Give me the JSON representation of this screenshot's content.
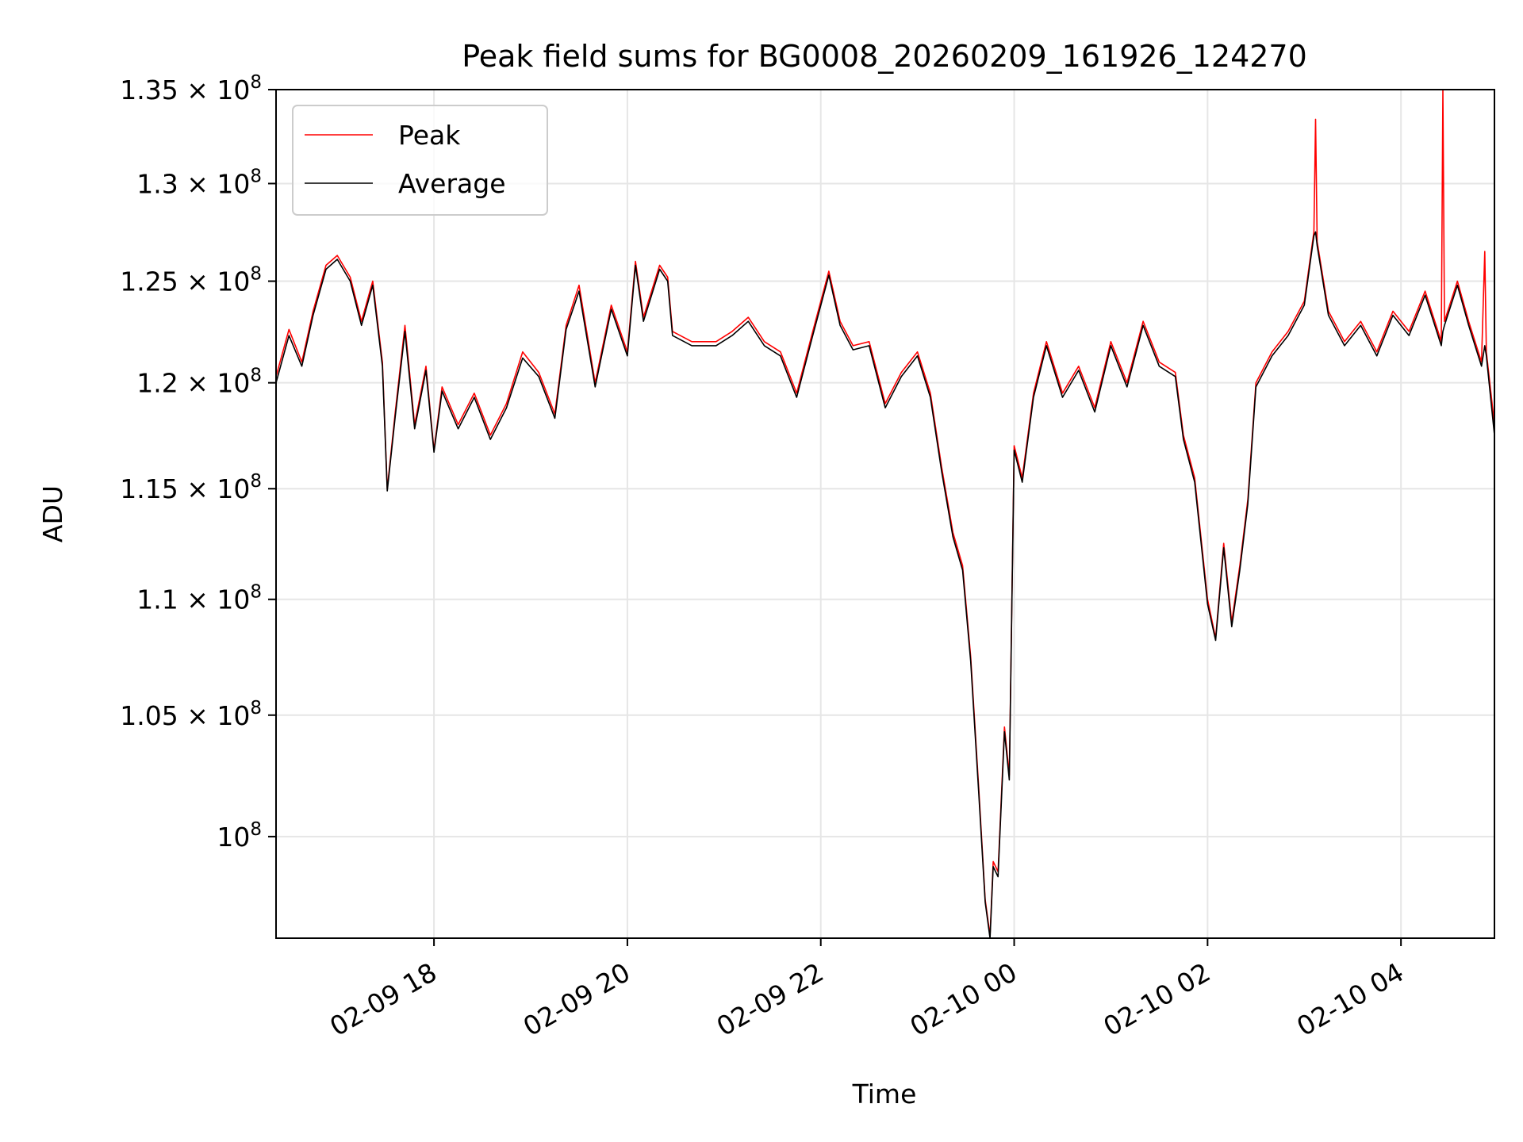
{
  "chart_data": {
    "type": "line",
    "title": "Peak field sums for BG0008_20260209_161926_124270",
    "xlabel": "Time",
    "ylabel": "ADU",
    "y_scale": "log",
    "grid": true,
    "legend_placement": "top-left",
    "xlim": [
      "2026-02-09T16:22",
      "2026-02-10T04:58"
    ],
    "ylim": [
      96000000,
      135000000
    ],
    "x_ticks": [
      {
        "t": "2026-02-09T18:00",
        "label": "02-09 18"
      },
      {
        "t": "2026-02-09T20:00",
        "label": "02-09 20"
      },
      {
        "t": "2026-02-09T22:00",
        "label": "02-09 22"
      },
      {
        "t": "2026-02-10T00:00",
        "label": "02-10 00"
      },
      {
        "t": "2026-02-10T02:00",
        "label": "02-10 02"
      },
      {
        "t": "2026-02-10T04:00",
        "label": "02-10 04"
      }
    ],
    "y_ticks": [
      {
        "v": 100000000,
        "mant": "",
        "exp": "8"
      },
      {
        "v": 105000000,
        "mant": "1.05",
        "exp": "8"
      },
      {
        "v": 110000000,
        "mant": "1.1",
        "exp": "8"
      },
      {
        "v": 115000000,
        "mant": "1.15",
        "exp": "8"
      },
      {
        "v": 120000000,
        "mant": "1.2",
        "exp": "8"
      },
      {
        "v": 125000000,
        "mant": "1.25",
        "exp": "8"
      },
      {
        "v": 130000000,
        "mant": "1.3",
        "exp": "8"
      },
      {
        "v": 135000000,
        "mant": "1.35",
        "exp": "8"
      }
    ],
    "series": [
      {
        "name": "Peak",
        "color": "#ff0000",
        "points": [
          [
            "2026-02-09T16:22",
            120300000.0
          ],
          [
            "2026-02-09T16:30",
            122600000.0
          ],
          [
            "2026-02-09T16:38",
            121000000.0
          ],
          [
            "2026-02-09T16:45",
            123500000.0
          ],
          [
            "2026-02-09T16:53",
            125800000.0
          ],
          [
            "2026-02-09T17:00",
            126300000.0
          ],
          [
            "2026-02-09T17:08",
            125200000.0
          ],
          [
            "2026-02-09T17:15",
            123000000.0
          ],
          [
            "2026-02-09T17:22",
            125000000.0
          ],
          [
            "2026-02-09T17:28",
            121000000.0
          ],
          [
            "2026-02-09T17:31",
            115000000.0
          ],
          [
            "2026-02-09T17:36",
            118600000.0
          ],
          [
            "2026-02-09T17:42",
            122800000.0
          ],
          [
            "2026-02-09T17:48",
            118000000.0
          ],
          [
            "2026-02-09T17:55",
            120800000.0
          ],
          [
            "2026-02-09T18:00",
            116800000.0
          ],
          [
            "2026-02-09T18:05",
            119800000.0
          ],
          [
            "2026-02-09T18:15",
            118000000.0
          ],
          [
            "2026-02-09T18:25",
            119500000.0
          ],
          [
            "2026-02-09T18:35",
            117500000.0
          ],
          [
            "2026-02-09T18:45",
            119000000.0
          ],
          [
            "2026-02-09T18:55",
            121500000.0
          ],
          [
            "2026-02-09T19:05",
            120500000.0
          ],
          [
            "2026-02-09T19:15",
            118500000.0
          ],
          [
            "2026-02-09T19:22",
            122800000.0
          ],
          [
            "2026-02-09T19:30",
            124800000.0
          ],
          [
            "2026-02-09T19:40",
            120000000.0
          ],
          [
            "2026-02-09T19:50",
            123800000.0
          ],
          [
            "2026-02-09T20:00",
            121500000.0
          ],
          [
            "2026-02-09T20:05",
            126000000.0
          ],
          [
            "2026-02-09T20:10",
            123200000.0
          ],
          [
            "2026-02-09T20:20",
            125800000.0
          ],
          [
            "2026-02-09T20:25",
            125200000.0
          ],
          [
            "2026-02-09T20:28",
            122500000.0
          ],
          [
            "2026-02-09T20:40",
            122000000.0
          ],
          [
            "2026-02-09T20:55",
            122000000.0
          ],
          [
            "2026-02-09T21:05",
            122500000.0
          ],
          [
            "2026-02-09T21:15",
            123200000.0
          ],
          [
            "2026-02-09T21:25",
            122000000.0
          ],
          [
            "2026-02-09T21:35",
            121500000.0
          ],
          [
            "2026-02-09T21:45",
            119500000.0
          ],
          [
            "2026-02-09T21:55",
            122500000.0
          ],
          [
            "2026-02-09T22:05",
            125500000.0
          ],
          [
            "2026-02-09T22:12",
            123000000.0
          ],
          [
            "2026-02-09T22:20",
            121800000.0
          ],
          [
            "2026-02-09T22:30",
            122000000.0
          ],
          [
            "2026-02-09T22:40",
            119000000.0
          ],
          [
            "2026-02-09T22:50",
            120500000.0
          ],
          [
            "2026-02-09T23:00",
            121500000.0
          ],
          [
            "2026-02-09T23:08",
            119500000.0
          ],
          [
            "2026-02-09T23:15",
            116000000.0
          ],
          [
            "2026-02-09T23:22",
            113000000.0
          ],
          [
            "2026-02-09T23:28",
            111500000.0
          ],
          [
            "2026-02-09T23:33",
            107500000.0
          ],
          [
            "2026-02-09T23:38",
            102000000.0
          ],
          [
            "2026-02-09T23:42",
            97500000.0
          ],
          [
            "2026-02-09T23:45",
            96100000.0
          ],
          [
            "2026-02-09T23:47",
            99000000.0
          ],
          [
            "2026-02-09T23:50",
            98600000.0
          ],
          [
            "2026-02-09T23:54",
            104500000.0
          ],
          [
            "2026-02-09T23:57",
            102500000.0
          ],
          [
            "2026-02-10T00:00",
            117000000.0
          ],
          [
            "2026-02-10T00:05",
            115500000.0
          ],
          [
            "2026-02-10T00:12",
            119500000.0
          ],
          [
            "2026-02-10T00:20",
            122000000.0
          ],
          [
            "2026-02-10T00:30",
            119500000.0
          ],
          [
            "2026-02-10T00:40",
            120800000.0
          ],
          [
            "2026-02-10T00:50",
            118800000.0
          ],
          [
            "2026-02-10T01:00",
            122000000.0
          ],
          [
            "2026-02-10T01:10",
            120000000.0
          ],
          [
            "2026-02-10T01:20",
            123000000.0
          ],
          [
            "2026-02-10T01:30",
            121000000.0
          ],
          [
            "2026-02-10T01:40",
            120500000.0
          ],
          [
            "2026-02-10T01:45",
            117500000.0
          ],
          [
            "2026-02-10T01:52",
            115500000.0
          ],
          [
            "2026-02-10T02:00",
            110000000.0
          ],
          [
            "2026-02-10T02:05",
            108300000.0
          ],
          [
            "2026-02-10T02:10",
            112500000.0
          ],
          [
            "2026-02-10T02:15",
            109000000.0
          ],
          [
            "2026-02-10T02:20",
            111500000.0
          ],
          [
            "2026-02-10T02:25",
            114500000.0
          ],
          [
            "2026-02-10T02:30",
            120000000.0
          ],
          [
            "2026-02-10T02:40",
            121500000.0
          ],
          [
            "2026-02-10T02:50",
            122500000.0
          ],
          [
            "2026-02-10T03:00",
            124000000.0
          ],
          [
            "2026-02-10T03:06",
            127500000.0
          ],
          [
            "2026-02-10T03:07",
            133400000.0
          ],
          [
            "2026-02-10T03:08",
            127000000.0
          ],
          [
            "2026-02-10T03:15",
            123500000.0
          ],
          [
            "2026-02-10T03:25",
            122000000.0
          ],
          [
            "2026-02-10T03:35",
            123000000.0
          ],
          [
            "2026-02-10T03:45",
            121500000.0
          ],
          [
            "2026-02-10T03:55",
            123500000.0
          ],
          [
            "2026-02-10T04:05",
            122500000.0
          ],
          [
            "2026-02-10T04:15",
            124500000.0
          ],
          [
            "2026-02-10T04:25",
            122000000.0
          ],
          [
            "2026-02-10T04:26",
            135000000.0
          ],
          [
            "2026-02-10T04:27",
            123000000.0
          ],
          [
            "2026-02-10T04:35",
            125000000.0
          ],
          [
            "2026-02-10T04:42",
            123000000.0
          ],
          [
            "2026-02-10T04:50",
            121000000.0
          ],
          [
            "2026-02-10T04:52",
            126500000.0
          ],
          [
            "2026-02-10T04:53",
            121500000.0
          ],
          [
            "2026-02-10T04:58",
            118000000.0
          ]
        ]
      },
      {
        "name": "Average",
        "color": "#000000",
        "points": [
          [
            "2026-02-09T16:22",
            120000000.0
          ],
          [
            "2026-02-09T16:30",
            122300000.0
          ],
          [
            "2026-02-09T16:38",
            120800000.0
          ],
          [
            "2026-02-09T16:45",
            123300000.0
          ],
          [
            "2026-02-09T16:53",
            125600000.0
          ],
          [
            "2026-02-09T17:00",
            126100000.0
          ],
          [
            "2026-02-09T17:08",
            125000000.0
          ],
          [
            "2026-02-09T17:15",
            122800000.0
          ],
          [
            "2026-02-09T17:22",
            124800000.0
          ],
          [
            "2026-02-09T17:28",
            120800000.0
          ],
          [
            "2026-02-09T17:31",
            114900000.0
          ],
          [
            "2026-02-09T17:36",
            118400000.0
          ],
          [
            "2026-02-09T17:42",
            122500000.0
          ],
          [
            "2026-02-09T17:48",
            117800000.0
          ],
          [
            "2026-02-09T17:55",
            120600000.0
          ],
          [
            "2026-02-09T18:00",
            116700000.0
          ],
          [
            "2026-02-09T18:05",
            119600000.0
          ],
          [
            "2026-02-09T18:15",
            117800000.0
          ],
          [
            "2026-02-09T18:25",
            119300000.0
          ],
          [
            "2026-02-09T18:35",
            117300000.0
          ],
          [
            "2026-02-09T18:45",
            118800000.0
          ],
          [
            "2026-02-09T18:55",
            121200000.0
          ],
          [
            "2026-02-09T19:05",
            120300000.0
          ],
          [
            "2026-02-09T19:15",
            118300000.0
          ],
          [
            "2026-02-09T19:22",
            122600000.0
          ],
          [
            "2026-02-09T19:30",
            124500000.0
          ],
          [
            "2026-02-09T19:40",
            119800000.0
          ],
          [
            "2026-02-09T19:50",
            123600000.0
          ],
          [
            "2026-02-09T20:00",
            121300000.0
          ],
          [
            "2026-02-09T20:05",
            125800000.0
          ],
          [
            "2026-02-09T20:10",
            123000000.0
          ],
          [
            "2026-02-09T20:20",
            125600000.0
          ],
          [
            "2026-02-09T20:25",
            125000000.0
          ],
          [
            "2026-02-09T20:28",
            122300000.0
          ],
          [
            "2026-02-09T20:40",
            121800000.0
          ],
          [
            "2026-02-09T20:55",
            121800000.0
          ],
          [
            "2026-02-09T21:05",
            122300000.0
          ],
          [
            "2026-02-09T21:15",
            123000000.0
          ],
          [
            "2026-02-09T21:25",
            121800000.0
          ],
          [
            "2026-02-09T21:35",
            121300000.0
          ],
          [
            "2026-02-09T21:45",
            119300000.0
          ],
          [
            "2026-02-09T21:55",
            122300000.0
          ],
          [
            "2026-02-09T22:05",
            125300000.0
          ],
          [
            "2026-02-09T22:12",
            122800000.0
          ],
          [
            "2026-02-09T22:20",
            121600000.0
          ],
          [
            "2026-02-09T22:30",
            121800000.0
          ],
          [
            "2026-02-09T22:40",
            118800000.0
          ],
          [
            "2026-02-09T22:50",
            120300000.0
          ],
          [
            "2026-02-09T23:00",
            121300000.0
          ],
          [
            "2026-02-09T23:08",
            119300000.0
          ],
          [
            "2026-02-09T23:15",
            115800000.0
          ],
          [
            "2026-02-09T23:22",
            112800000.0
          ],
          [
            "2026-02-09T23:28",
            111300000.0
          ],
          [
            "2026-02-09T23:33",
            107300000.0
          ],
          [
            "2026-02-09T23:38",
            101800000.0
          ],
          [
            "2026-02-09T23:42",
            97400000.0
          ],
          [
            "2026-02-09T23:45",
            96000000.0
          ],
          [
            "2026-02-09T23:47",
            98800000.0
          ],
          [
            "2026-02-09T23:50",
            98400000.0
          ],
          [
            "2026-02-09T23:54",
            104300000.0
          ],
          [
            "2026-02-09T23:57",
            102300000.0
          ],
          [
            "2026-02-10T00:00",
            116800000.0
          ],
          [
            "2026-02-10T00:05",
            115300000.0
          ],
          [
            "2026-02-10T00:12",
            119300000.0
          ],
          [
            "2026-02-10T00:20",
            121800000.0
          ],
          [
            "2026-02-10T00:30",
            119300000.0
          ],
          [
            "2026-02-10T00:40",
            120600000.0
          ],
          [
            "2026-02-10T00:50",
            118600000.0
          ],
          [
            "2026-02-10T01:00",
            121800000.0
          ],
          [
            "2026-02-10T01:10",
            119800000.0
          ],
          [
            "2026-02-10T01:20",
            122800000.0
          ],
          [
            "2026-02-10T01:30",
            120800000.0
          ],
          [
            "2026-02-10T01:40",
            120300000.0
          ],
          [
            "2026-02-10T01:45",
            117300000.0
          ],
          [
            "2026-02-10T01:52",
            115300000.0
          ],
          [
            "2026-02-10T02:00",
            109800000.0
          ],
          [
            "2026-02-10T02:05",
            108200000.0
          ],
          [
            "2026-02-10T02:10",
            112300000.0
          ],
          [
            "2026-02-10T02:15",
            108800000.0
          ],
          [
            "2026-02-10T02:20",
            111300000.0
          ],
          [
            "2026-02-10T02:25",
            114300000.0
          ],
          [
            "2026-02-10T02:30",
            119800000.0
          ],
          [
            "2026-02-10T02:40",
            121300000.0
          ],
          [
            "2026-02-10T02:50",
            122300000.0
          ],
          [
            "2026-02-10T03:00",
            123800000.0
          ],
          [
            "2026-02-10T03:06",
            127300000.0
          ],
          [
            "2026-02-10T03:07",
            127500000.0
          ],
          [
            "2026-02-10T03:08",
            126800000.0
          ],
          [
            "2026-02-10T03:15",
            123300000.0
          ],
          [
            "2026-02-10T03:25",
            121800000.0
          ],
          [
            "2026-02-10T03:35",
            122800000.0
          ],
          [
            "2026-02-10T03:45",
            121300000.0
          ],
          [
            "2026-02-10T03:55",
            123300000.0
          ],
          [
            "2026-02-10T04:05",
            122300000.0
          ],
          [
            "2026-02-10T04:15",
            124300000.0
          ],
          [
            "2026-02-10T04:25",
            121800000.0
          ],
          [
            "2026-02-10T04:26",
            122500000.0
          ],
          [
            "2026-02-10T04:27",
            122800000.0
          ],
          [
            "2026-02-10T04:35",
            124800000.0
          ],
          [
            "2026-02-10T04:42",
            122800000.0
          ],
          [
            "2026-02-10T04:50",
            120800000.0
          ],
          [
            "2026-02-10T04:52",
            121800000.0
          ],
          [
            "2026-02-10T04:53",
            121300000.0
          ],
          [
            "2026-02-10T04:58",
            117500000.0
          ]
        ]
      }
    ]
  }
}
